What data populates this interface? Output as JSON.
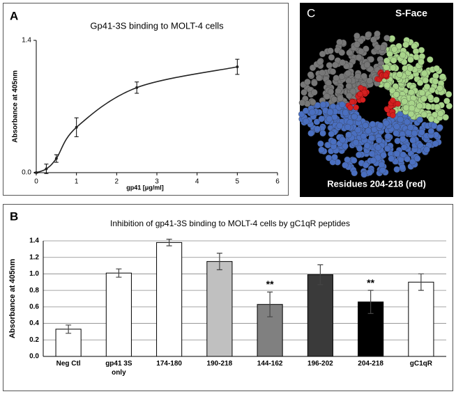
{
  "chart_data": [
    {
      "type": "line",
      "panel": "A",
      "title": "Gp41-3S binding to MOLT-4 cells",
      "x_label": "gp41 [μg/ml]",
      "y_label": "Absorbance at 405nm",
      "x": [
        0,
        0.25,
        0.5,
        1,
        2.5,
        5
      ],
      "values": [
        0,
        0.04,
        0.15,
        0.48,
        0.9,
        1.12
      ],
      "errors": [
        0.005,
        0.05,
        0.04,
        0.1,
        0.06,
        0.08
      ],
      "color": "#222222",
      "xlim": [
        0,
        6
      ],
      "xticks": [
        0,
        1,
        2,
        3,
        4,
        5,
        6
      ],
      "ylim": [
        0,
        1.4
      ],
      "yticks": [
        {
          "value": 0,
          "label": "0.0"
        },
        1.4
      ]
    },
    {
      "type": "bar",
      "panel": "B",
      "title": "Inhibition of gp41-3S binding to MOLT-4 cells by  gC1qR peptides",
      "y_label": "Absorbance at 405nm",
      "categories": [
        "Neg Ctl",
        "gp41 3S only",
        "174-180",
        "190-218",
        "144-162",
        "196-202",
        "204-218",
        "gC1qR"
      ],
      "values": [
        0.33,
        1.01,
        1.38,
        1.15,
        0.63,
        0.99,
        0.66,
        0.9
      ],
      "errors": [
        0.05,
        0.05,
        0.04,
        0.1,
        0.15,
        0.12,
        0.14,
        0.1
      ],
      "colors": [
        "#ffffff",
        "#ffffff",
        "#ffffff",
        "#c0c0c0",
        "#808080",
        "#3a3a3a",
        "#000000",
        "#ffffff"
      ],
      "significance": [
        null,
        null,
        null,
        null,
        "**",
        null,
        "**",
        null
      ],
      "ylim": [
        0,
        1.4
      ],
      "yticks": [
        {
          "value": 0,
          "label": "0.0"
        },
        0.2,
        0.4,
        0.6,
        0.8,
        {
          "value": 1,
          "label": "1.0"
        },
        1.2,
        1.4
      ],
      "grid": true
    }
  ],
  "image": {
    "panel": "C",
    "title": "S-Face",
    "caption": "Residues 204-218 (red)"
  }
}
